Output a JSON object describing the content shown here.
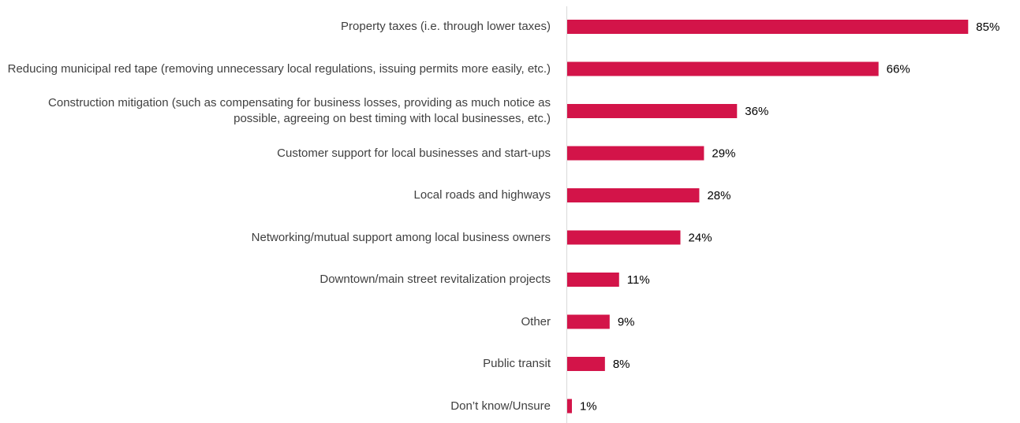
{
  "chart_data": {
    "type": "bar",
    "orientation": "horizontal",
    "categories": [
      "Property taxes (i.e. through lower taxes)",
      "Reducing municipal red tape (removing unnecessary local regulations, issuing permits more easily, etc.)",
      "Construction mitigation (such as compensating for business losses, providing as much notice as possible, agreeing on best timing with local businesses, etc.)",
      "Customer support for local businesses and start-ups",
      "Local roads and highways",
      "Networking/mutual support among local business owners",
      "Downtown/main street revitalization projects",
      "Other",
      "Public transit",
      "Don’t know/Unsure"
    ],
    "values": [
      85,
      66,
      36,
      29,
      28,
      24,
      11,
      9,
      8,
      1
    ],
    "value_labels": [
      "85%",
      "66%",
      "36%",
      "29%",
      "28%",
      "24%",
      "11%",
      "9%",
      "8%",
      "1%"
    ],
    "color": "#d31449"
  }
}
